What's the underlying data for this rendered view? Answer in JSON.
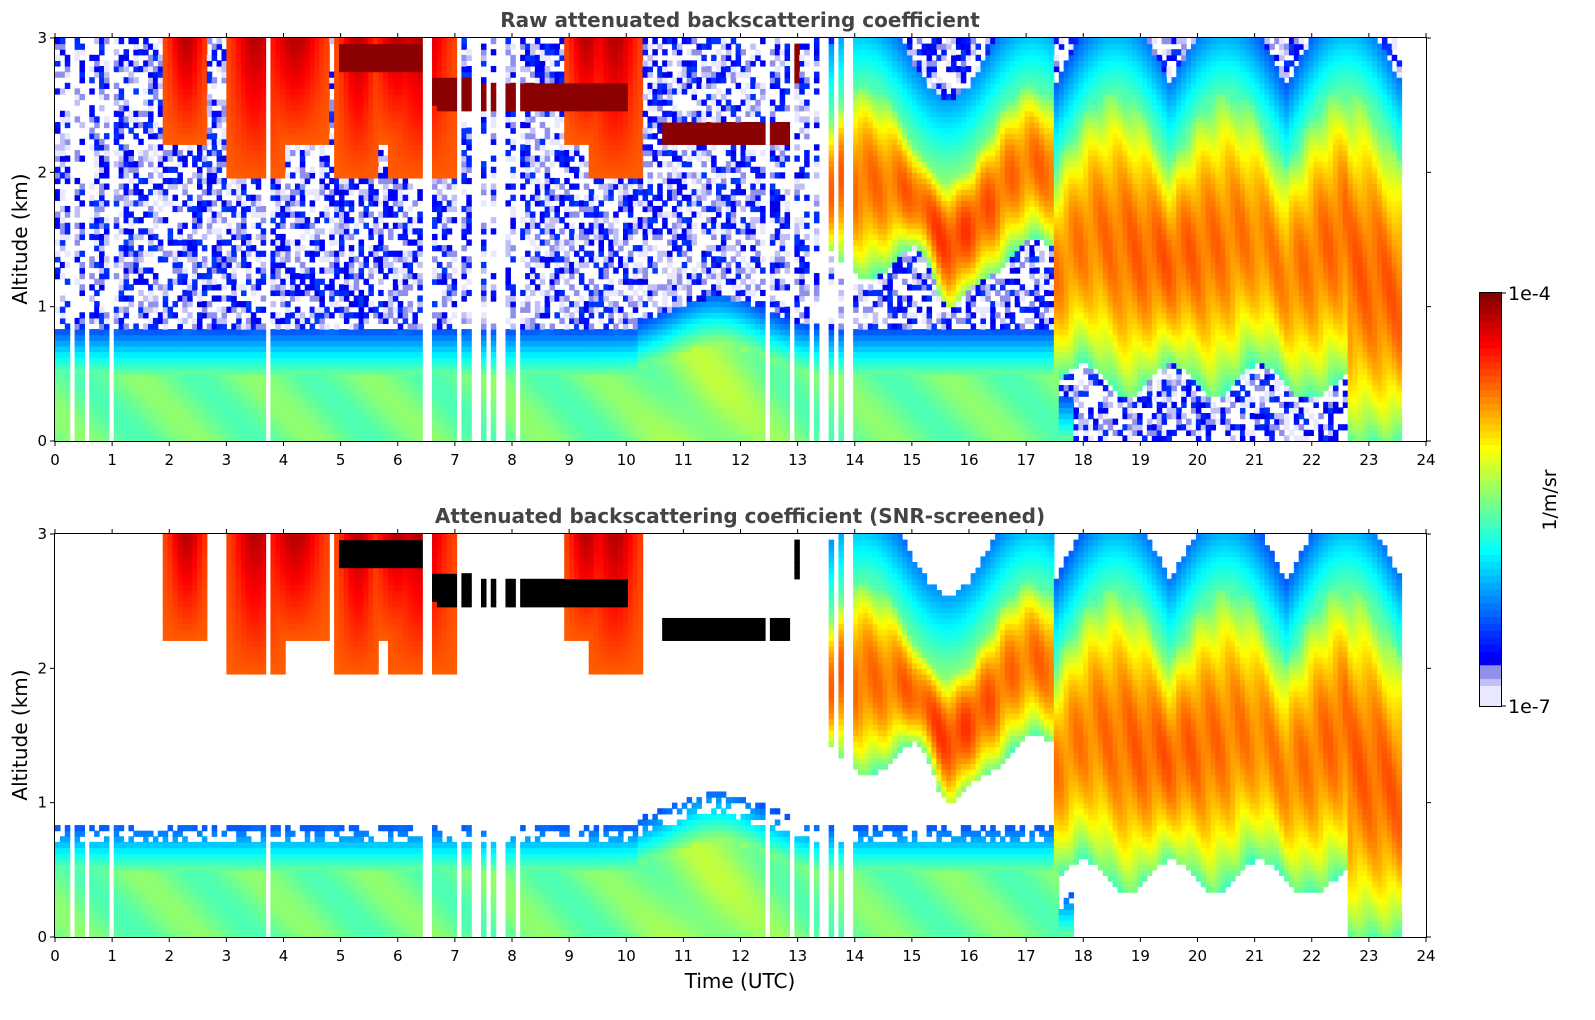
{
  "chart_data": [
    {
      "type": "heatmap",
      "title": "Raw attenuated backscattering coefficient",
      "xlabel": "",
      "ylabel": "Altitude (km)",
      "xlim": [
        0,
        24
      ],
      "ylim": [
        0,
        3
      ],
      "xticks": [
        "0",
        "1",
        "2",
        "3",
        "4",
        "5",
        "6",
        "7",
        "8",
        "9",
        "10",
        "11",
        "12",
        "13",
        "14",
        "15",
        "16",
        "17",
        "18",
        "19",
        "20",
        "21",
        "22",
        "23",
        "24"
      ],
      "yticks": [
        "0",
        "1",
        "2",
        "3"
      ],
      "data_end_hour": 23.55,
      "screened": false,
      "features": [
        {
          "name": "boundary layer",
          "start": 0.0,
          "end": 10.2,
          "top": 0.5,
          "value": -5.55
        },
        {
          "name": "boundary layer deepening",
          "start": 10.2,
          "end": 13.5,
          "top": 0.7,
          "value": -5.45
        },
        {
          "name": "boundary layer",
          "start": 13.5,
          "end": 17.8,
          "top": 0.5,
          "value": -5.55
        },
        {
          "name": "cloud band",
          "start": 5.0,
          "end": 6.5,
          "top": 2.95,
          "bottom": 2.75,
          "value": -4.0
        },
        {
          "name": "cloud band",
          "start": 6.5,
          "end": 10.0,
          "top": 2.65,
          "bottom": 2.45,
          "value": -4.0
        },
        {
          "name": "cloud band",
          "start": 10.6,
          "end": 12.9,
          "top": 2.35,
          "bottom": 2.2,
          "value": -4.0
        },
        {
          "name": "aerosol layer",
          "start": 13.6,
          "end": 17.5,
          "top": 2.2,
          "bottom": 1.3,
          "value": -4.7
        },
        {
          "name": "aerosol layer",
          "start": 17.5,
          "end": 23.5,
          "top": 1.8,
          "bottom": 0.5,
          "value": -4.75
        }
      ],
      "gap_hours": [
        0.3,
        0.55,
        1.0,
        3.75,
        6.45,
        6.55,
        7.05,
        7.3,
        7.45,
        7.6,
        7.72,
        7.85,
        8.1,
        12.5,
        12.9,
        13.25,
        13.4,
        13.5,
        13.65,
        13.85,
        13.95
      ]
    },
    {
      "type": "heatmap",
      "title": "Attenuated backscattering coefficient (SNR-screened)",
      "xlabel": "Time (UTC)",
      "ylabel": "Altitude (km)",
      "xlim": [
        0,
        24
      ],
      "ylim": [
        0,
        3
      ],
      "xticks": [
        "0",
        "1",
        "2",
        "3",
        "4",
        "5",
        "6",
        "7",
        "8",
        "9",
        "10",
        "11",
        "12",
        "13",
        "14",
        "15",
        "16",
        "17",
        "18",
        "19",
        "20",
        "21",
        "22",
        "23",
        "24"
      ],
      "yticks": [
        "0",
        "1",
        "2",
        "3"
      ],
      "data_end_hour": 23.55,
      "screened": true,
      "gap_hours": [
        0.3,
        0.55,
        1.0,
        3.75,
        6.45,
        6.55,
        7.05,
        7.3,
        7.45,
        7.6,
        7.72,
        7.85,
        8.1,
        12.5,
        12.9,
        13.25,
        13.4,
        13.5,
        13.65,
        13.85,
        13.95
      ]
    }
  ],
  "colorbar": {
    "label": "1/m/sr",
    "max_label": "1e-4",
    "min_label": "1e-7",
    "vmin_log10": -7,
    "vmax_log10": -4,
    "colormap": "jet",
    "low_colors": [
      "#e8e8ff",
      "#c0c0f6",
      "#9090ea"
    ],
    "saturated_color": "#000000"
  }
}
